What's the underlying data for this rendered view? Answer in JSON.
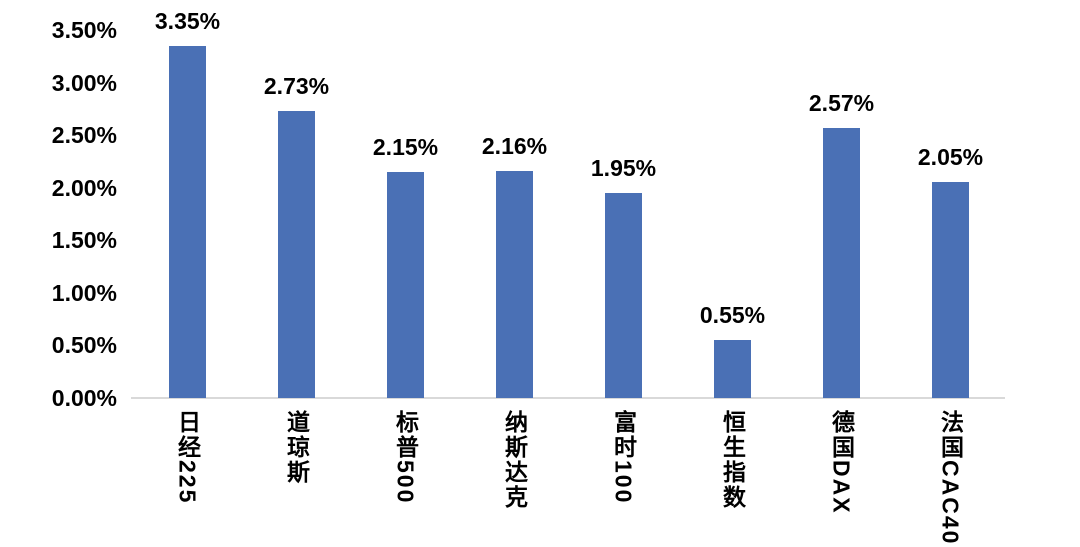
{
  "chart_data": {
    "type": "bar",
    "title": "",
    "xlabel": "",
    "ylabel": "",
    "categories": [
      "日经225",
      "道琼斯",
      "标普500",
      "纳斯达克",
      "富时100",
      "恒生指数",
      "德国DAX",
      "法国CAC40"
    ],
    "values": [
      3.35,
      2.73,
      2.15,
      2.16,
      1.95,
      0.55,
      2.57,
      2.05
    ],
    "data_labels": [
      "3.35%",
      "2.73%",
      "2.15%",
      "2.16%",
      "1.95%",
      "0.55%",
      "2.57%",
      "2.05%"
    ],
    "ylim": [
      0,
      3.5
    ],
    "ytick_values": [
      0,
      0.5,
      1,
      1.5,
      2,
      2.5,
      3,
      3.5
    ],
    "ytick_labels": [
      "0.00%",
      "0.50%",
      "1.00%",
      "1.50%",
      "2.00%",
      "2.50%",
      "3.00%",
      "3.50%"
    ],
    "grid": false,
    "legend": false,
    "bar_color": "#4A70B5",
    "axis_line_color": "#D9D9D9",
    "text_color": "#000000",
    "background": "#FFFFFF"
  }
}
